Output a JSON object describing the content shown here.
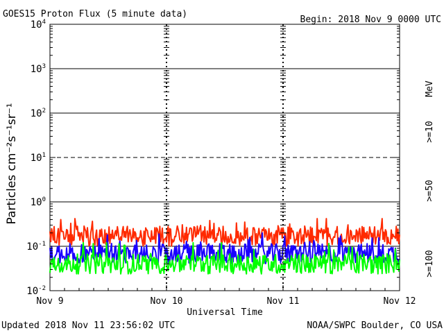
{
  "header": {
    "title": "GOES15 Proton Flux (5 minute data)",
    "begin": "Begin: 2018 Nov 9 0000 UTC"
  },
  "footer": {
    "updated": "Updated 2018 Nov 11 23:56:02 UTC",
    "source": "NOAA/SWPC Boulder, CO USA"
  },
  "chart_data": {
    "type": "line",
    "title": "GOES15 Proton Flux (5 minute data)",
    "xlabel": "Universal Time",
    "ylabel": "Particles cm⁻²s⁻¹sr⁻¹",
    "yscale": "log",
    "ylim": [
      0.01,
      10000
    ],
    "xlim": [
      "2018-11-09",
      "2018-11-12"
    ],
    "x_ticks": [
      "Nov 9",
      "Nov 10",
      "Nov 11",
      "Nov 12"
    ],
    "y_ticks": [
      {
        "base": "10",
        "exp": "4"
      },
      {
        "base": "10",
        "exp": "3"
      },
      {
        "base": "10",
        "exp": "2"
      },
      {
        "base": "10",
        "exp": "1"
      },
      {
        "base": "10",
        "exp": "0"
      },
      {
        "base": "10",
        "exp": "-1"
      },
      {
        "base": "10",
        "exp": "-2"
      }
    ],
    "y_tick_values": [
      10000,
      1000,
      100,
      10,
      1,
      0.1,
      0.01
    ],
    "threshold_lines": [
      {
        "value": 1000,
        "style": "solid"
      },
      {
        "value": 100,
        "style": "solid"
      },
      {
        "value": 10,
        "style": "dashed"
      },
      {
        "value": 1,
        "style": "solid"
      },
      {
        "value": 0.1,
        "style": "solid"
      }
    ],
    "energy_unit": "MeV",
    "series": [
      {
        "name": ">=10",
        "color": "#ff2a00",
        "mean": 0.17,
        "min": 0.1,
        "max": 0.42
      },
      {
        "name": ">=50",
        "color": "#1a00ff",
        "mean": 0.068,
        "min": 0.04,
        "max": 0.2
      },
      {
        "name": ">=100",
        "color": "#00ff00",
        "mean": 0.04,
        "min": 0.022,
        "max": 0.12
      }
    ]
  }
}
